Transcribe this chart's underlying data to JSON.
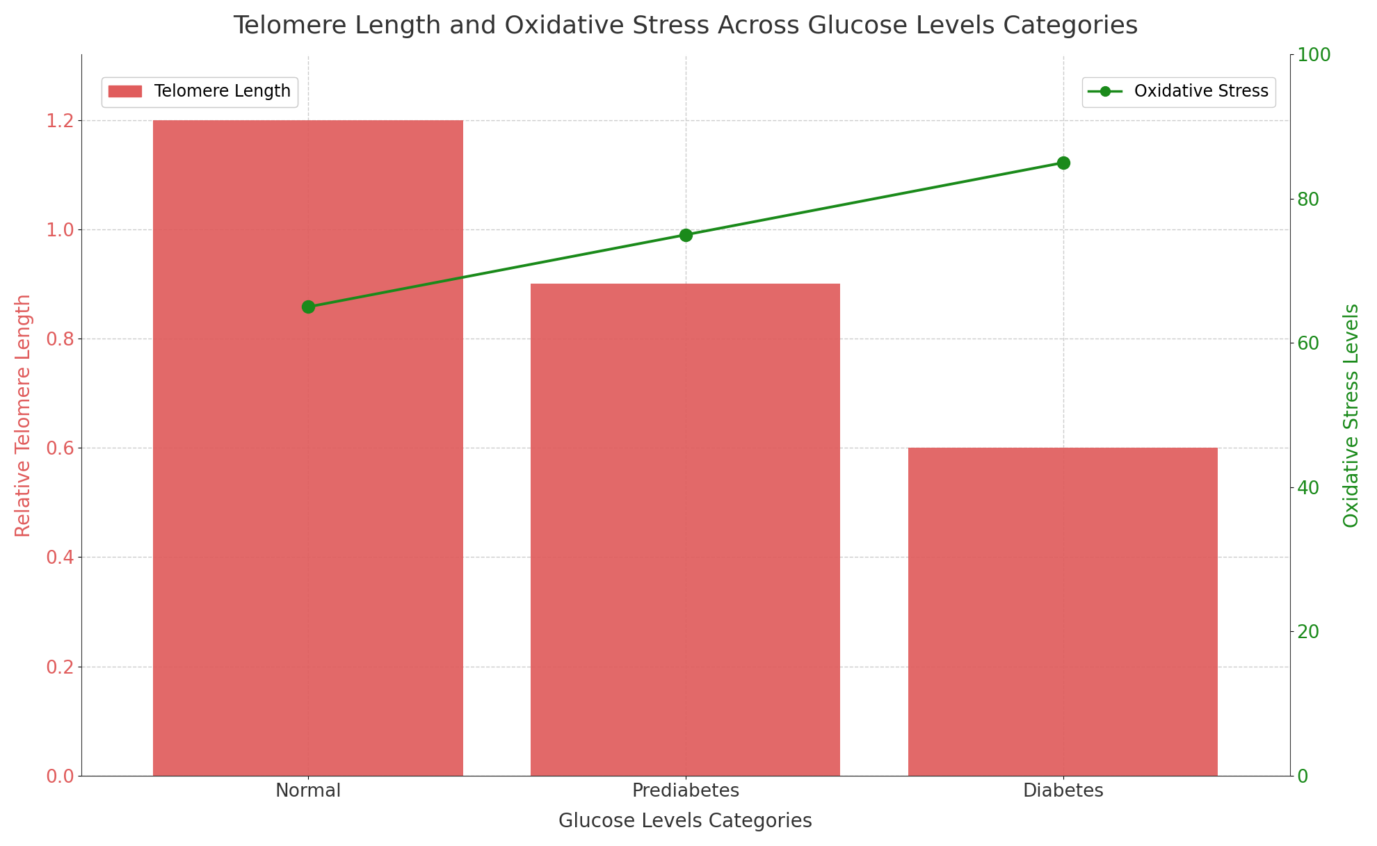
{
  "title": "Telomere Length and Oxidative Stress Across Glucose Levels Categories",
  "categories": [
    "Normal",
    "Prediabetes",
    "Diabetes"
  ],
  "telomere_values": [
    1.2,
    0.9,
    0.6
  ],
  "oxidative_stress_values": [
    65,
    75,
    85
  ],
  "bar_color": "#e05c5c",
  "line_color": "#1a8a1a",
  "marker_color": "#1a8a1a",
  "xlabel": "Glucose Levels Categories",
  "ylabel_left": "Relative Telomere Length",
  "ylabel_right": "Oxidative Stress Levels",
  "ylim_left": [
    0,
    1.32
  ],
  "ylim_right": [
    0,
    100
  ],
  "title_fontsize": 26,
  "axis_label_fontsize": 20,
  "tick_fontsize": 19,
  "legend_fontsize": 17,
  "background_color": "#ffffff",
  "grid_color": "#cccccc",
  "left_tick_color": "#e05c5c",
  "right_tick_color": "#1a8a1a",
  "bar_width": 0.82,
  "xlim": [
    -0.6,
    2.6
  ]
}
